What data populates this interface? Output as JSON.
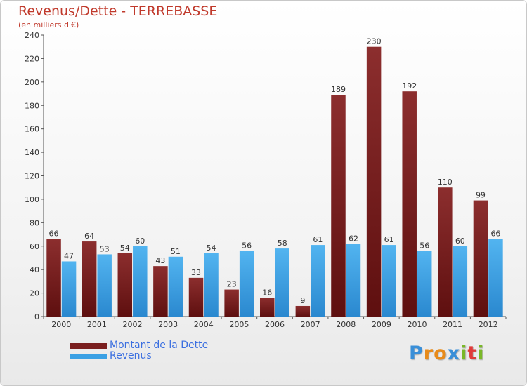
{
  "header": {
    "title": "Revenus/Dette - TERREBASSE",
    "subtitle": "(en milliers d'€)"
  },
  "colors": {
    "dette": "#7a1f1f",
    "revenus": "#3aa0e4",
    "text": "#c0392b",
    "legend_text": "#3b6fe0"
  },
  "legend": [
    {
      "label": "Montant de la Dette",
      "color": "#7a1f1f"
    },
    {
      "label": "Revenus",
      "color": "#3aa0e4"
    }
  ],
  "logo": {
    "letters": [
      "P",
      "r",
      "o",
      "x",
      "i",
      "t",
      "i"
    ],
    "colors": [
      "#3a8fd8",
      "#e88b1a",
      "#e88b1a",
      "#3a8fd8",
      "#7ab828",
      "#e03a3a",
      "#7ab828"
    ]
  },
  "chart_data": {
    "type": "bar",
    "categories": [
      "2000",
      "2001",
      "2002",
      "2003",
      "2004",
      "2005",
      "2006",
      "2007",
      "2008",
      "2009",
      "2010",
      "2011",
      "2012"
    ],
    "series": [
      {
        "name": "Montant de la Dette",
        "values": [
          66,
          64,
          54,
          43,
          33,
          23,
          16,
          9,
          189,
          230,
          192,
          110,
          99
        ]
      },
      {
        "name": "Revenus",
        "values": [
          47,
          53,
          60,
          51,
          54,
          56,
          58,
          61,
          62,
          61,
          56,
          60,
          66
        ]
      }
    ],
    "yticks": [
      0,
      20,
      40,
      60,
      80,
      100,
      120,
      140,
      160,
      180,
      200,
      220,
      240
    ],
    "ylim": [
      0,
      240
    ],
    "grid": false,
    "legend_position": "bottom-left"
  }
}
